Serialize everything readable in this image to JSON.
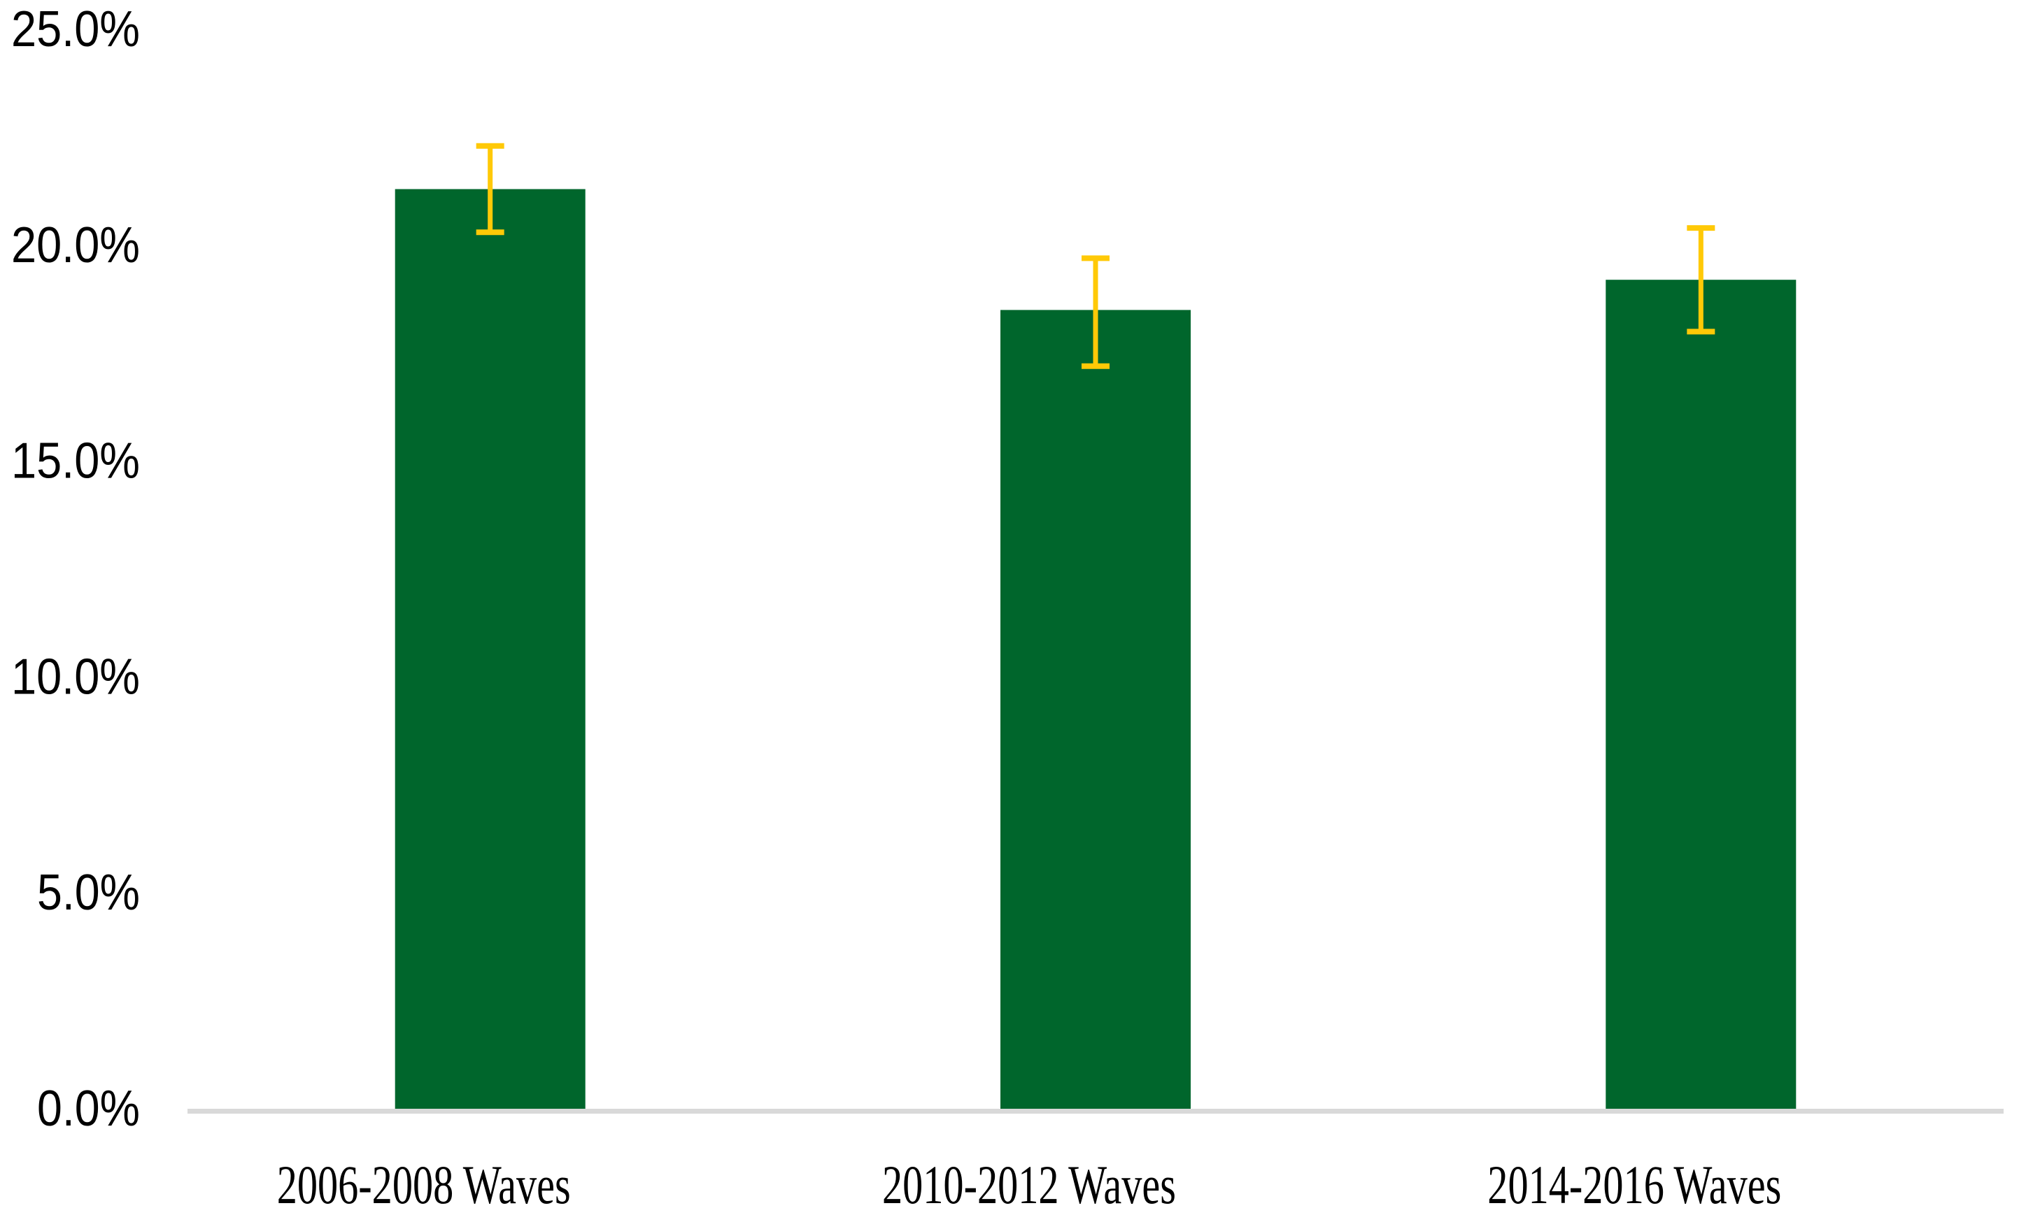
{
  "page": {
    "background_color": "#FFFFFF"
  },
  "chart_data": {
    "type": "bar",
    "title": "",
    "categories": [
      "2006-2008 Waves",
      "2010-2012 Waves",
      "2014-2016 Waves"
    ],
    "series": [
      {
        "name": "",
        "values": [
          21.3,
          18.5,
          19.2
        ],
        "error_high": [
          22.3,
          19.7,
          20.4
        ],
        "error_low": [
          20.3,
          17.2,
          18.0
        ]
      }
    ],
    "xlabel": "",
    "ylabel": "",
    "y_axis": {
      "min": 0,
      "max": 25,
      "tick_step": 5,
      "tick_labels": [
        "0.0%",
        "5.0%",
        "10.0%",
        "15.0%",
        "20.0%",
        "25.0%"
      ],
      "format": "percent"
    },
    "grid": false,
    "legend_position": "none",
    "colors": {
      "bar_fill": "#00662C",
      "error_bar": "#FFC907",
      "axis_line": "#D9D9D9",
      "tick_text": "#000000"
    }
  }
}
